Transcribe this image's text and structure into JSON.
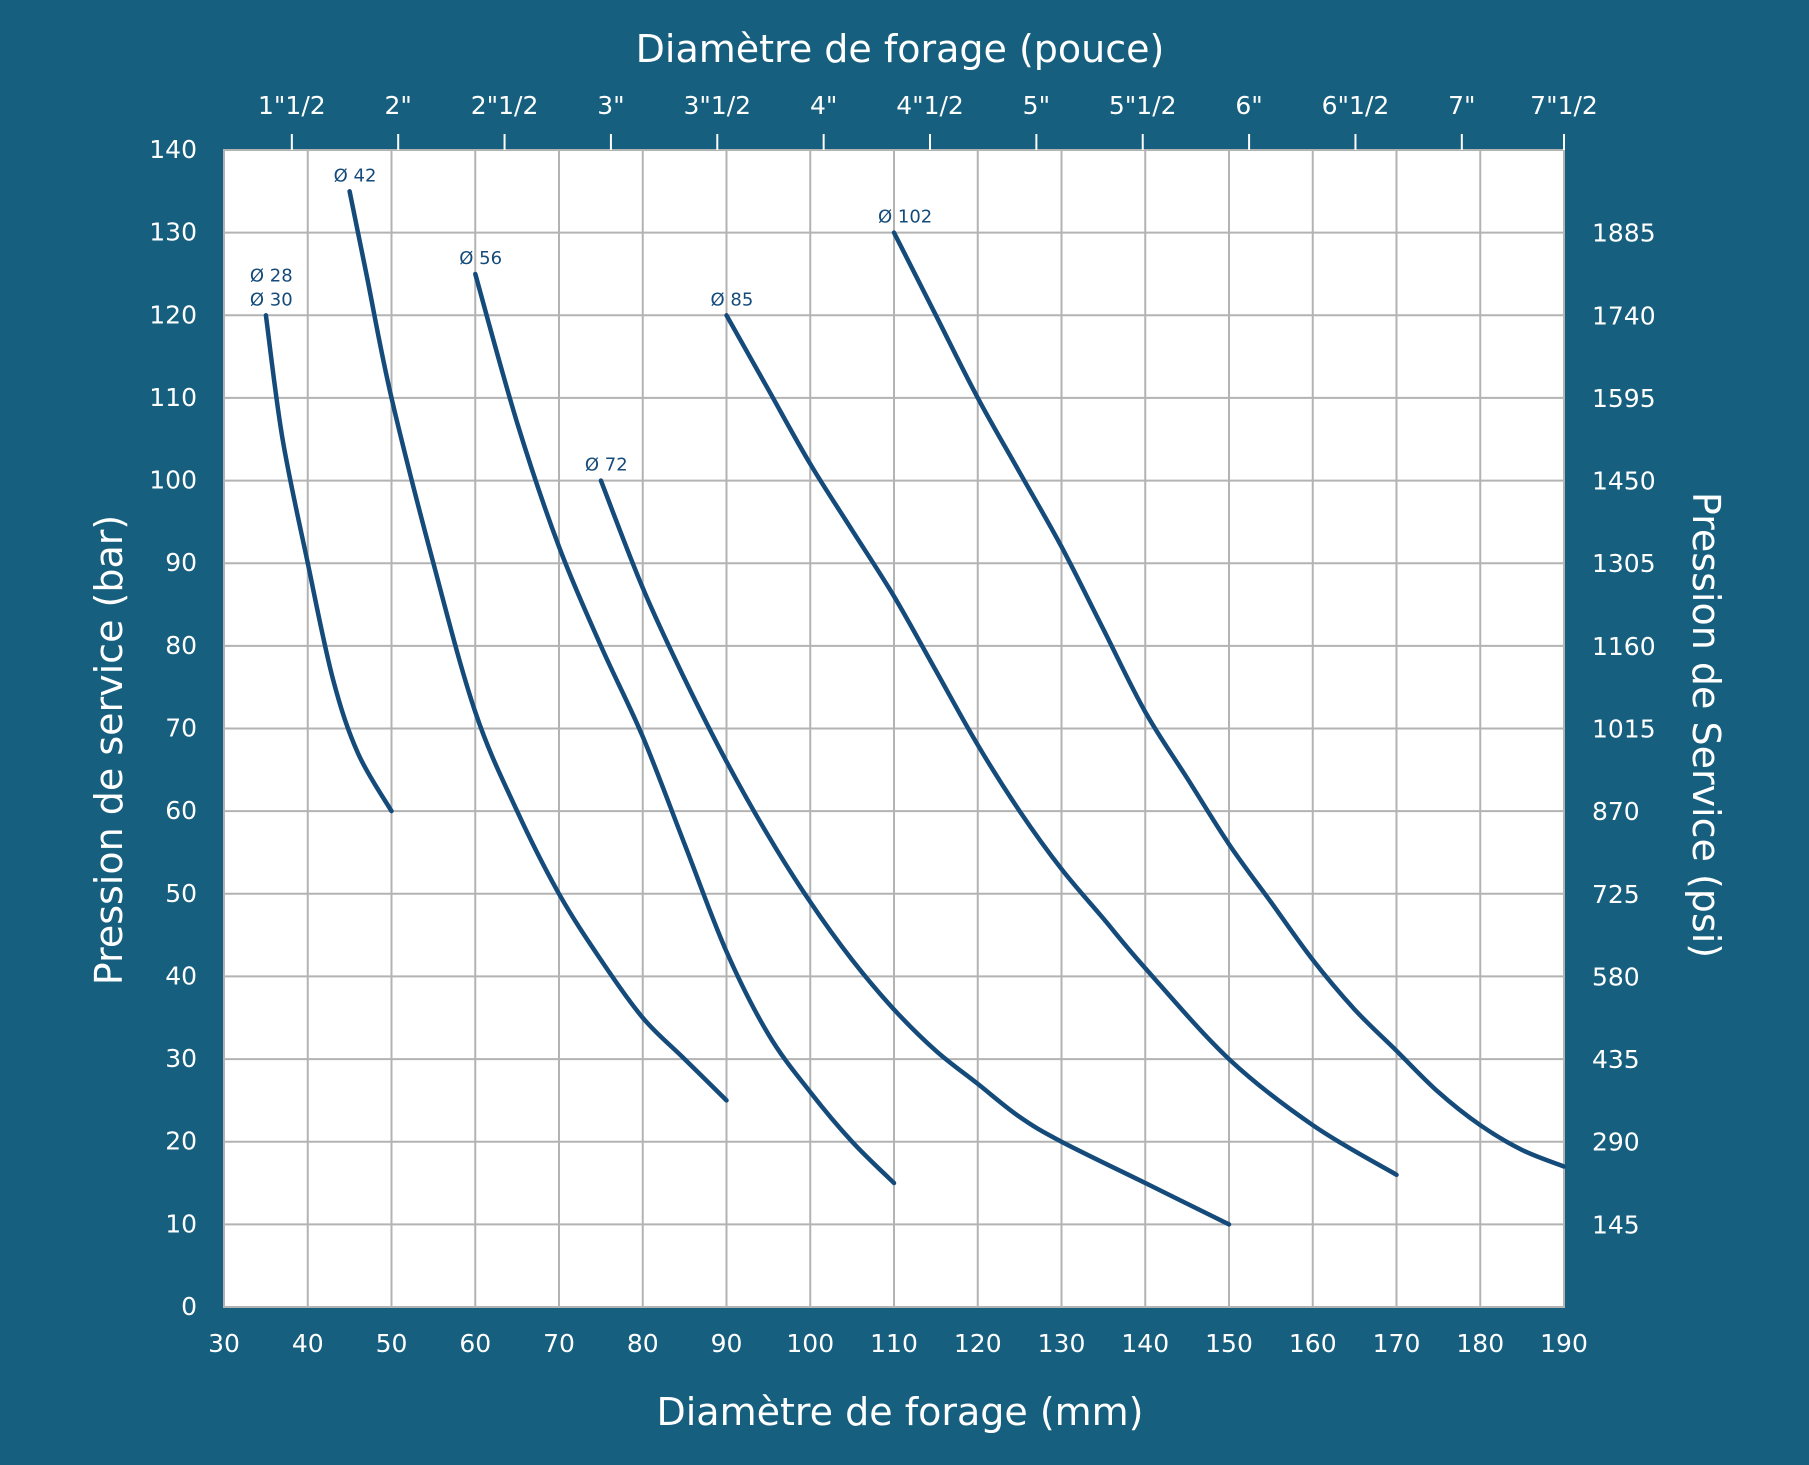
{
  "chart_data": {
    "type": "line",
    "title": "",
    "xlabel": "Diamètre de forage (mm)",
    "ylabel": "Pression de service (bar)",
    "x2label": "Diamètre de forage (pouce)",
    "y2label": "Pression de Service (psi)",
    "xlim": [
      30,
      190
    ],
    "ylim": [
      0,
      140
    ],
    "x_ticks": [
      30,
      40,
      50,
      60,
      70,
      80,
      90,
      100,
      110,
      120,
      130,
      140,
      150,
      160,
      170,
      180,
      190
    ],
    "y_ticks": [
      0,
      10,
      20,
      30,
      40,
      50,
      60,
      70,
      80,
      90,
      100,
      110,
      120,
      130,
      140
    ],
    "top_ticks": [
      {
        "label": "1\"1/2",
        "x": 38.1
      },
      {
        "label": "2\"",
        "x": 50.8
      },
      {
        "label": "2\"1/2",
        "x": 63.5
      },
      {
        "label": "3\"",
        "x": 76.2
      },
      {
        "label": "3\"1/2",
        "x": 88.9
      },
      {
        "label": "4\"",
        "x": 101.6
      },
      {
        "label": "4\"1/2",
        "x": 114.3
      },
      {
        "label": "5\"",
        "x": 127.0
      },
      {
        "label": "5\"1/2",
        "x": 139.7
      },
      {
        "label": "6\"",
        "x": 152.4
      },
      {
        "label": "6\"1/2",
        "x": 165.1
      },
      {
        "label": "7\"",
        "x": 177.8
      },
      {
        "label": "7\"1/2",
        "x": 190.5
      }
    ],
    "right_ticks": [
      {
        "label": "145",
        "y": 10
      },
      {
        "label": "290",
        "y": 20
      },
      {
        "label": "435",
        "y": 30
      },
      {
        "label": "580",
        "y": 40
      },
      {
        "label": "725",
        "y": 50
      },
      {
        "label": "870",
        "y": 60
      },
      {
        "label": "1015",
        "y": 70
      },
      {
        "label": "1160",
        "y": 80
      },
      {
        "label": "1305",
        "y": 90
      },
      {
        "label": "1450",
        "y": 100
      },
      {
        "label": "1595",
        "y": 110
      },
      {
        "label": "1740",
        "y": 120
      },
      {
        "label": "1885",
        "y": 130
      }
    ],
    "grid": true,
    "series": [
      {
        "name": "Ø 28\nØ 30",
        "x": [
          35,
          37,
          40,
          43,
          46,
          50
        ],
        "y": [
          120,
          105,
          90,
          76,
          67,
          60
        ]
      },
      {
        "name": "Ø 42",
        "x": [
          45,
          47,
          50,
          55,
          60,
          65,
          70,
          75,
          80,
          85,
          90
        ],
        "y": [
          135,
          125,
          110,
          90,
          72,
          60,
          50,
          42,
          35,
          30,
          25
        ]
      },
      {
        "name": "Ø 56",
        "x": [
          60,
          65,
          70,
          75,
          80,
          85,
          90,
          95,
          100,
          105,
          110
        ],
        "y": [
          125,
          107,
          92,
          80,
          69,
          56,
          43,
          33,
          26,
          20,
          15
        ]
      },
      {
        "name": "Ø 72",
        "x": [
          75,
          80,
          85,
          90,
          95,
          100,
          105,
          110,
          115,
          120,
          125,
          130,
          140,
          150
        ],
        "y": [
          100,
          87,
          76,
          66,
          57,
          49,
          42,
          36,
          31,
          27,
          23,
          20,
          15,
          10
        ]
      },
      {
        "name": "Ø 85",
        "x": [
          90,
          95,
          100,
          105,
          110,
          115,
          120,
          125,
          130,
          135,
          140,
          150,
          160,
          170
        ],
        "y": [
          120,
          111,
          102,
          94,
          86,
          77,
          68,
          60,
          53,
          47,
          41,
          30,
          22,
          16
        ]
      },
      {
        "name": "Ø 102",
        "x": [
          110,
          115,
          120,
          125,
          130,
          135,
          140,
          145,
          150,
          155,
          160,
          165,
          170,
          175,
          180,
          185,
          190
        ],
        "y": [
          130,
          120,
          110,
          101,
          92,
          82,
          72,
          64,
          56,
          49,
          42,
          36,
          31,
          26,
          22,
          19,
          17
        ]
      }
    ],
    "series_label_lines": [
      [
        "Ø 28",
        "Ø 30"
      ],
      [
        "Ø 42"
      ],
      [
        "Ø 56"
      ],
      [
        "Ø 72"
      ],
      [
        "Ø 85"
      ],
      [
        "Ø 102"
      ]
    ],
    "line_color": "#154b7a",
    "background_color": "#165f7e",
    "plot_background_color": "#ffffff",
    "grid_color": "#b3b3b3"
  }
}
